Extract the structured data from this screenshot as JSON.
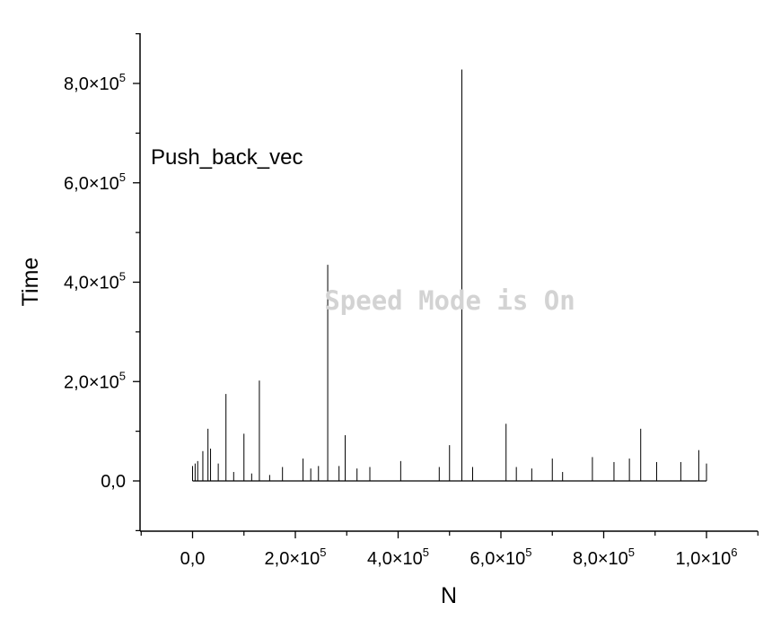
{
  "chart_data": {
    "type": "line",
    "title": "",
    "xlabel": "N",
    "ylabel": "Time",
    "legend": {
      "entries": [
        "Push_back_vec"
      ],
      "placement": "top-left"
    },
    "xlim": [
      -100000,
      1100000
    ],
    "ylim": [
      -100000,
      900000
    ],
    "x_ticks": [
      {
        "value": 0,
        "label": "0,0",
        "exp": ""
      },
      {
        "value": 200000,
        "label": "2,0×10",
        "exp": "5"
      },
      {
        "value": 400000,
        "label": "4,0×10",
        "exp": "5"
      },
      {
        "value": 600000,
        "label": "6,0×10",
        "exp": "5"
      },
      {
        "value": 800000,
        "label": "8,0×10",
        "exp": "5"
      },
      {
        "value": 1000000,
        "label": "1,0×10",
        "exp": "6"
      }
    ],
    "y_ticks": [
      {
        "value": 0,
        "label": "0,0",
        "exp": ""
      },
      {
        "value": 200000,
        "label": "2,0×10",
        "exp": "5"
      },
      {
        "value": 400000,
        "label": "4,0×10",
        "exp": "5"
      },
      {
        "value": 600000,
        "label": "6,0×10",
        "exp": "5"
      },
      {
        "value": 800000,
        "label": "8,0×10",
        "exp": "5"
      }
    ],
    "series": [
      {
        "name": "Push_back_vec",
        "color": "#000000",
        "x": [
          0,
          5000,
          10000,
          20000,
          30000,
          35000,
          50000,
          65000,
          80000,
          100000,
          115000,
          130000,
          150000,
          175000,
          215000,
          230000,
          245000,
          263000,
          285000,
          297000,
          320000,
          345000,
          405000,
          480000,
          500000,
          524000,
          545000,
          610000,
          630000,
          660000,
          700000,
          720000,
          778000,
          820000,
          850000,
          872000,
          903000,
          950000,
          985000,
          1000000
        ],
        "y": [
          30000,
          35000,
          40000,
          60000,
          105000,
          65000,
          35000,
          175000,
          18000,
          95000,
          15000,
          202000,
          12000,
          28000,
          45000,
          25000,
          30000,
          435000,
          30000,
          92000,
          25000,
          28000,
          40000,
          28000,
          72000,
          828000,
          28000,
          115000,
          28000,
          25000,
          45000,
          18000,
          48000,
          38000,
          45000,
          105000,
          38000,
          38000,
          62000,
          35000
        ]
      }
    ]
  },
  "watermark": "Speed Mode is On"
}
